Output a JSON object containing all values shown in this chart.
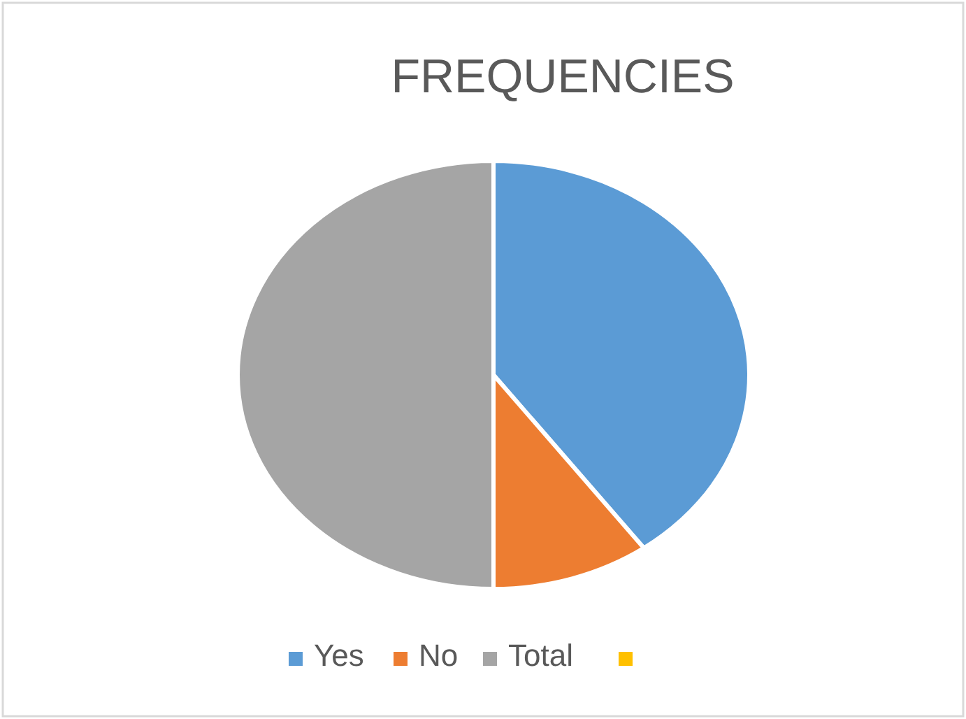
{
  "chart_data": {
    "type": "pie",
    "title": "FREQUENCIES",
    "categories": [
      "Yes",
      "No",
      "Total",
      null
    ],
    "values": [
      40,
      10,
      50,
      0
    ],
    "colors": [
      "#5b9bd5",
      "#ed7d31",
      "#a5a5a5",
      "#ffc000"
    ],
    "legend": "bottom"
  }
}
